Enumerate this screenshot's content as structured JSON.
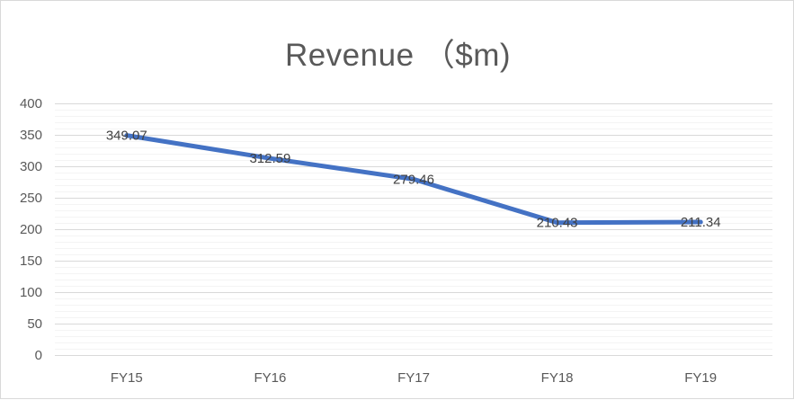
{
  "chart_data": {
    "type": "line",
    "title": "Revenue （$m)",
    "xlabel": "",
    "ylabel": "",
    "categories": [
      "FY15",
      "FY16",
      "FY17",
      "FY18",
      "FY19"
    ],
    "series": [
      {
        "values": [
          349.07,
          312.59,
          279.46,
          210.43,
          211.34
        ]
      }
    ],
    "data_labels": [
      "349.07",
      "312.59",
      "279.46",
      "210.43",
      "211.34"
    ],
    "ylim": [
      0,
      400
    ],
    "yticks": [
      0,
      50,
      100,
      150,
      200,
      250,
      300,
      350,
      400
    ],
    "grid": true,
    "legend": "none",
    "colors": {
      "line": "#4472c4",
      "grid": "#d9d9d9",
      "text": "#595959"
    }
  }
}
